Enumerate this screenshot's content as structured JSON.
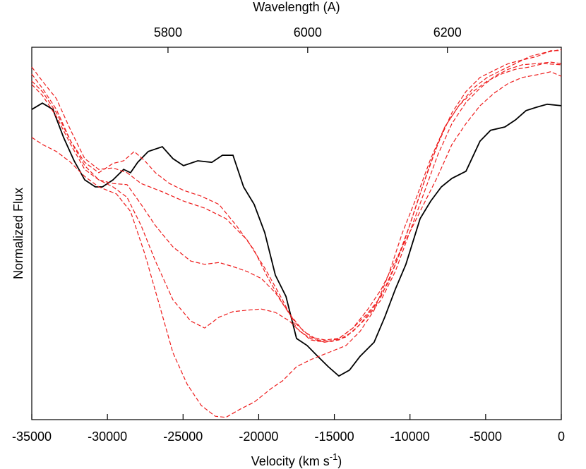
{
  "chart_data": {
    "type": "line",
    "title": "Wavelength (A)",
    "y_label": "Normalized Flux",
    "x_label": {
      "text": "Velocity (km s",
      "superscript": "-1",
      "suffix": ")"
    },
    "xlim": [
      -35000,
      0
    ],
    "xticks": [
      -35000,
      -30000,
      -25000,
      -20000,
      -15000,
      -10000,
      -5000,
      0
    ],
    "x2lim": [
      5605,
      6363
    ],
    "x2ticks": [
      5800,
      6000,
      6200
    ],
    "ylim": [
      0,
      1
    ],
    "series": [
      {
        "color": "#000000",
        "dash": false,
        "x": [
          -35000,
          -34300,
          -33600,
          -32900,
          -32200,
          -31500,
          -30800,
          -30330,
          -29630,
          -28930,
          -28470,
          -28000,
          -27300,
          -26370,
          -25670,
          -24970,
          -24030,
          -23100,
          -22400,
          -21700,
          -21000,
          -20300,
          -19600,
          -18900,
          -18200,
          -17500,
          -16800,
          -16100,
          -15400,
          -14700,
          -14000,
          -13300,
          -12370,
          -11670,
          -10970,
          -10270,
          -9330,
          -8630,
          -7930,
          -7230,
          -6300,
          -5370,
          -4670,
          -3730,
          -3030,
          -2330,
          -1630,
          -930,
          0
        ],
        "values": [
          0.833,
          0.85,
          0.833,
          0.758,
          0.695,
          0.644,
          0.625,
          0.625,
          0.644,
          0.672,
          0.663,
          0.691,
          0.72,
          0.733,
          0.701,
          0.682,
          0.695,
          0.691,
          0.71,
          0.71,
          0.625,
          0.578,
          0.502,
          0.388,
          0.331,
          0.218,
          0.199,
          0.17,
          0.142,
          0.117,
          0.133,
          0.17,
          0.208,
          0.275,
          0.35,
          0.417,
          0.54,
          0.587,
          0.625,
          0.648,
          0.667,
          0.748,
          0.777,
          0.786,
          0.805,
          0.83,
          0.839,
          0.847,
          0.843
        ]
      },
      {
        "color": "#ee1c1c",
        "dash": true,
        "x": [
          -35000,
          -34300,
          -33370,
          -32430,
          -31500,
          -30570,
          -29400,
          -28470,
          -27530,
          -26600,
          -25670,
          -24730,
          -23800,
          -22870,
          -22170,
          -21230,
          -20300,
          -19130,
          -18430,
          -17500,
          -16570,
          -15400,
          -14230,
          -13300,
          -12370,
          -11430,
          -10500,
          -9570,
          -8630,
          -7700,
          -6770,
          -5830,
          -4900,
          -3970,
          -3030,
          -2100,
          -1170,
          0
        ],
        "values": [
          0.758,
          0.739,
          0.72,
          0.691,
          0.653,
          0.625,
          0.606,
          0.559,
          0.445,
          0.313,
          0.18,
          0.095,
          0.038,
          0.009,
          0.006,
          0.028,
          0.047,
          0.085,
          0.104,
          0.142,
          0.161,
          0.18,
          0.199,
          0.237,
          0.294,
          0.388,
          0.502,
          0.597,
          0.701,
          0.786,
          0.843,
          0.89,
          0.919,
          0.938,
          0.956,
          0.975,
          0.985,
          0.994
        ]
      },
      {
        "color": "#ee1c1c",
        "dash": true,
        "x": [
          -35000,
          -34300,
          -33370,
          -32430,
          -31500,
          -30570,
          -29630,
          -28700,
          -27770,
          -26830,
          -25670,
          -24500,
          -23570,
          -22630,
          -21700,
          -20770,
          -19830,
          -18900,
          -17970,
          -17270,
          -16570,
          -15630,
          -14700,
          -13770,
          -12830,
          -11900,
          -10970,
          -10030,
          -9100,
          -8170,
          -7230,
          -6300,
          -5370,
          -4430,
          -3500,
          -2570,
          -1630,
          -700,
          0
        ],
        "values": [
          0.9,
          0.871,
          0.814,
          0.739,
          0.672,
          0.644,
          0.625,
          0.597,
          0.521,
          0.426,
          0.322,
          0.265,
          0.246,
          0.275,
          0.29,
          0.294,
          0.297,
          0.288,
          0.265,
          0.237,
          0.218,
          0.208,
          0.218,
          0.246,
          0.284,
          0.331,
          0.417,
          0.521,
          0.634,
          0.739,
          0.824,
          0.881,
          0.919,
          0.938,
          0.956,
          0.966,
          0.975,
          0.991,
          0.991
        ]
      },
      {
        "color": "#ee1c1c",
        "dash": true,
        "x": [
          -35000,
          -34300,
          -33370,
          -32430,
          -31500,
          -30570,
          -29630,
          -28700,
          -27770,
          -26830,
          -25670,
          -24500,
          -23570,
          -22630,
          -21700,
          -20770,
          -19830,
          -18900,
          -17970,
          -17030,
          -16100,
          -15170,
          -14230,
          -13300,
          -12370,
          -11430,
          -10500,
          -9570,
          -8630,
          -7700,
          -6770,
          -5830,
          -4900,
          -3970,
          -3030,
          -2100,
          -1170,
          0
        ],
        "values": [
          0.928,
          0.89,
          0.833,
          0.748,
          0.682,
          0.644,
          0.634,
          0.631,
          0.578,
          0.521,
          0.464,
          0.426,
          0.417,
          0.422,
          0.411,
          0.398,
          0.379,
          0.341,
          0.284,
          0.237,
          0.214,
          0.21,
          0.222,
          0.256,
          0.303,
          0.369,
          0.464,
          0.578,
          0.691,
          0.786,
          0.843,
          0.881,
          0.909,
          0.928,
          0.941,
          0.947,
          0.956,
          0.953
        ]
      },
      {
        "color": "#ee1c1c",
        "dash": true,
        "x": [
          -35000,
          -34300,
          -33370,
          -32430,
          -31500,
          -30570,
          -29630,
          -28700,
          -27770,
          -26370,
          -24970,
          -23570,
          -22170,
          -20770,
          -19600,
          -18430,
          -17500,
          -16570,
          -15630,
          -14700,
          -13770,
          -12830,
          -11900,
          -10970,
          -10030,
          -9100,
          -8170,
          -7230,
          -6300,
          -5370,
          -4430,
          -3500,
          -2570,
          -1630,
          -700,
          0
        ],
        "values": [
          0.947,
          0.909,
          0.862,
          0.777,
          0.701,
          0.672,
          0.676,
          0.663,
          0.634,
          0.612,
          0.587,
          0.568,
          0.54,
          0.483,
          0.407,
          0.322,
          0.246,
          0.214,
          0.208,
          0.214,
          0.237,
          0.275,
          0.322,
          0.398,
          0.502,
          0.606,
          0.71,
          0.795,
          0.852,
          0.89,
          0.922,
          0.941,
          0.953,
          0.956,
          0.96,
          0.956
        ]
      },
      {
        "color": "#ee1c1c",
        "dash": true,
        "x": [
          -35000,
          -34300,
          -33370,
          -32430,
          -31500,
          -30570,
          -29630,
          -28930,
          -28230,
          -27530,
          -26830,
          -25900,
          -24970,
          -23800,
          -22630,
          -21470,
          -20300,
          -19370,
          -18430,
          -17500,
          -16570,
          -15630,
          -14700,
          -13770,
          -12830,
          -11900,
          -10970,
          -10030,
          -9100,
          -8170,
          -7230,
          -6300,
          -5370,
          -4430,
          -3500,
          -2570,
          -1630,
          -700,
          0
        ],
        "values": [
          0.909,
          0.881,
          0.824,
          0.748,
          0.691,
          0.663,
          0.688,
          0.695,
          0.72,
          0.695,
          0.663,
          0.634,
          0.616,
          0.6,
          0.578,
          0.521,
          0.455,
          0.379,
          0.313,
          0.256,
          0.222,
          0.214,
          0.218,
          0.246,
          0.294,
          0.35,
          0.426,
          0.502,
          0.578,
          0.653,
          0.739,
          0.795,
          0.843,
          0.877,
          0.903,
          0.919,
          0.926,
          0.934,
          0.922
        ]
      }
    ]
  }
}
